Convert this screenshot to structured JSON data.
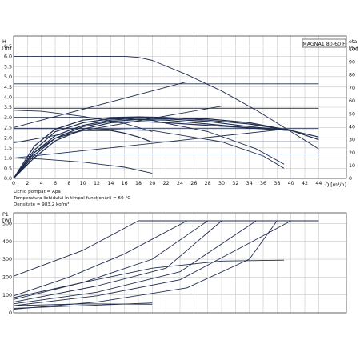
{
  "chart_data": [
    {
      "type": "line",
      "title": "MAGNA1 80-60 F",
      "ylabel_unit": "[m]",
      "ylabel": "H",
      "y2label": "eta",
      "y2label_unit": "[%]",
      "xlabel": "Q [m³/h]",
      "xlim": [
        0,
        48
      ],
      "ylim": [
        0,
        7
      ],
      "y2lim": [
        0,
        110
      ],
      "xticks": [
        "0",
        "2",
        "4",
        "6",
        "8",
        "10",
        "12",
        "14",
        "16",
        "18",
        "20",
        "22",
        "24",
        "26",
        "28",
        "30",
        "32",
        "34",
        "36",
        "38",
        "40",
        "42",
        "44"
      ],
      "yticks": [
        "0.0",
        "0.5",
        "1.0",
        "1.5",
        "2.0",
        "2.5",
        "3.0",
        "3.5",
        "4.0",
        "4.5",
        "5.0",
        "5.5",
        "6.0",
        "6.5"
      ],
      "y2ticks": [
        "0",
        "10",
        "20",
        "30",
        "40",
        "50",
        "60",
        "70",
        "80",
        "90",
        "100"
      ],
      "grid": true,
      "notes": [
        "Lichid pompat = Apă",
        "Temperatura lichidului în timpul funcționării = 60 °C",
        "Densitate = 983.2 kg/m³"
      ],
      "series": [
        {
          "kind": "head",
          "x": [
            0,
            16,
            18,
            20,
            25,
            30,
            35,
            40,
            44
          ],
          "y": [
            6.0,
            6.0,
            5.95,
            5.8,
            5.1,
            4.3,
            3.35,
            2.3,
            1.45
          ]
        },
        {
          "kind": "head",
          "x": [
            0,
            44
          ],
          "y": [
            4.65,
            4.65
          ]
        },
        {
          "kind": "head",
          "x": [
            0,
            44
          ],
          "y": [
            3.45,
            3.45
          ]
        },
        {
          "kind": "head",
          "x": [
            0,
            44
          ],
          "y": [
            2.45,
            2.45
          ]
        },
        {
          "kind": "head",
          "x": [
            0,
            44
          ],
          "y": [
            1.8,
            1.8
          ]
        },
        {
          "kind": "head",
          "x": [
            0,
            44
          ],
          "y": [
            1.2,
            1.2
          ]
        },
        {
          "kind": "head",
          "x": [
            0,
            25
          ],
          "y": [
            2.5,
            4.75
          ]
        },
        {
          "kind": "head",
          "x": [
            0,
            30
          ],
          "y": [
            1.75,
            3.55
          ]
        },
        {
          "kind": "head",
          "x": [
            0,
            40
          ],
          "y": [
            1.0,
            2.45
          ]
        },
        {
          "kind": "head",
          "x": [
            0,
            4,
            10,
            16,
            20
          ],
          "y": [
            3.35,
            3.3,
            3.05,
            2.7,
            2.3
          ]
        },
        {
          "kind": "head",
          "x": [
            0,
            4,
            10,
            16,
            20
          ],
          "y": [
            1.0,
            0.95,
            0.8,
            0.55,
            0.25
          ]
        },
        {
          "kind": "head",
          "x": [
            0,
            10,
            20,
            28,
            35,
            39
          ],
          "y": [
            3.0,
            3.0,
            2.85,
            2.3,
            1.45,
            0.7
          ]
        },
        {
          "kind": "head",
          "x": [
            0,
            10,
            20,
            30,
            36,
            39
          ],
          "y": [
            2.45,
            2.45,
            2.35,
            1.8,
            1.1,
            0.5
          ]
        },
        {
          "kind": "eta",
          "x": [
            0,
            3,
            6,
            10,
            14,
            18,
            22,
            28,
            34,
            40,
            44
          ],
          "y": [
            0,
            25,
            38,
            45,
            47,
            47.5,
            47,
            45,
            42,
            37,
            30
          ]
        },
        {
          "kind": "eta",
          "x": [
            0,
            3,
            6,
            10,
            14,
            18,
            22,
            28,
            34,
            40,
            44
          ],
          "y": [
            0,
            22,
            36,
            43,
            46,
            47,
            46.5,
            46,
            43,
            37,
            32
          ]
        },
        {
          "kind": "eta",
          "x": [
            0,
            3,
            6,
            10,
            14,
            18,
            22,
            28,
            34,
            40
          ],
          "y": [
            0,
            20,
            33,
            41,
            45,
            46.5,
            46,
            44,
            40,
            37
          ]
        },
        {
          "kind": "eta",
          "x": [
            0,
            3,
            6,
            10,
            14,
            18,
            22,
            28,
            34,
            40
          ],
          "y": [
            0,
            18,
            31,
            40,
            44,
            45.5,
            45,
            42,
            39,
            37
          ]
        },
        {
          "kind": "eta",
          "x": [
            0,
            3,
            6,
            10,
            14,
            18,
            22,
            28,
            34,
            40
          ],
          "y": [
            0,
            16,
            29,
            38,
            43,
            44,
            43,
            41,
            39,
            37
          ]
        },
        {
          "kind": "eta",
          "x": [
            0,
            3,
            6,
            10,
            14,
            16,
            18,
            20
          ],
          "y": [
            0,
            20,
            31,
            37,
            37,
            35,
            32,
            28
          ]
        }
      ]
    },
    {
      "type": "line",
      "ylabel": "P1",
      "ylabel_unit": "[W]",
      "xlim": [
        0,
        48
      ],
      "ylim": [
        0,
        560
      ],
      "yticks": [
        "0",
        "100",
        "200",
        "300",
        "400",
        "500"
      ],
      "grid": true,
      "series": [
        {
          "x": [
            0,
            10,
            18,
            44
          ],
          "y": [
            205,
            350,
            515,
            515
          ]
        },
        {
          "x": [
            0,
            8,
            16,
            25,
            44
          ],
          "y": [
            95,
            200,
            330,
            515,
            515
          ]
        },
        {
          "x": [
            0,
            10,
            20,
            28,
            44
          ],
          "y": [
            75,
            170,
            300,
            515,
            515
          ]
        },
        {
          "x": [
            0,
            12,
            22,
            30,
            44
          ],
          "y": [
            60,
            150,
            250,
            515,
            515
          ]
        },
        {
          "x": [
            0,
            12,
            24,
            35,
            44
          ],
          "y": [
            50,
            115,
            230,
            515,
            515
          ]
        },
        {
          "x": [
            0,
            12,
            24,
            34,
            40,
            44
          ],
          "y": [
            40,
            95,
            185,
            390,
            515,
            515
          ]
        },
        {
          "x": [
            0,
            12,
            25,
            34,
            38,
            44
          ],
          "y": [
            20,
            60,
            140,
            300,
            515,
            515
          ]
        },
        {
          "x": [
            0,
            10,
            20,
            30,
            39
          ],
          "y": [
            85,
            170,
            250,
            290,
            295
          ]
        },
        {
          "x": [
            0,
            10,
            20
          ],
          "y": [
            25,
            40,
            55
          ]
        },
        {
          "x": [
            0,
            10,
            20
          ],
          "y": [
            40,
            50,
            48
          ]
        }
      ]
    }
  ]
}
